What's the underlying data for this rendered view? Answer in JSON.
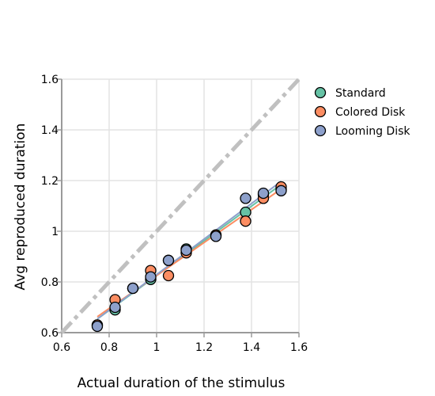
{
  "chart_data": {
    "type": "scatter",
    "xlabel": "Actual duration of the stimulus",
    "ylabel": "Avg reproduced duration",
    "xlim": [
      0.6,
      1.6
    ],
    "ylim": [
      0.6,
      1.6
    ],
    "xticks": [
      0.6,
      0.8,
      1,
      1.2,
      1.4,
      1.6
    ],
    "yticks": [
      0.6,
      0.8,
      1,
      1.2,
      1.4,
      1.6
    ],
    "tick_labels": [
      "0.6",
      "0.8",
      "1",
      "1.2",
      "1.4",
      "1.6"
    ],
    "grid": true,
    "legend_position": "top-right",
    "reference_line": {
      "style": "dash-dot",
      "color": "#c0c0c0",
      "from": [
        0.6,
        0.6
      ],
      "to": [
        1.6,
        1.6
      ]
    },
    "series": [
      {
        "name": "Standard",
        "color": "#66c2a5",
        "x": [
          0.75,
          0.825,
          0.9,
          0.975,
          1.05,
          1.125,
          1.25,
          1.375,
          1.45,
          1.525
        ],
        "y": [
          0.63,
          0.69,
          0.775,
          0.81,
          0.885,
          0.93,
          0.985,
          1.075,
          1.145,
          1.165
        ]
      },
      {
        "name": "Colored Disk",
        "color": "#fc8d62",
        "x": [
          0.75,
          0.825,
          0.9,
          0.975,
          1.05,
          1.125,
          1.25,
          1.375,
          1.45,
          1.525
        ],
        "y": [
          0.63,
          0.73,
          0.775,
          0.845,
          0.825,
          0.915,
          0.985,
          1.04,
          1.13,
          1.175
        ]
      },
      {
        "name": "Looming Disk",
        "color": "#8da0cb",
        "x": [
          0.75,
          0.825,
          0.9,
          0.975,
          1.05,
          1.125,
          1.25,
          1.375,
          1.45,
          1.525
        ],
        "y": [
          0.625,
          0.7,
          0.775,
          0.82,
          0.885,
          0.925,
          0.98,
          1.13,
          1.15,
          1.16
        ]
      }
    ]
  }
}
